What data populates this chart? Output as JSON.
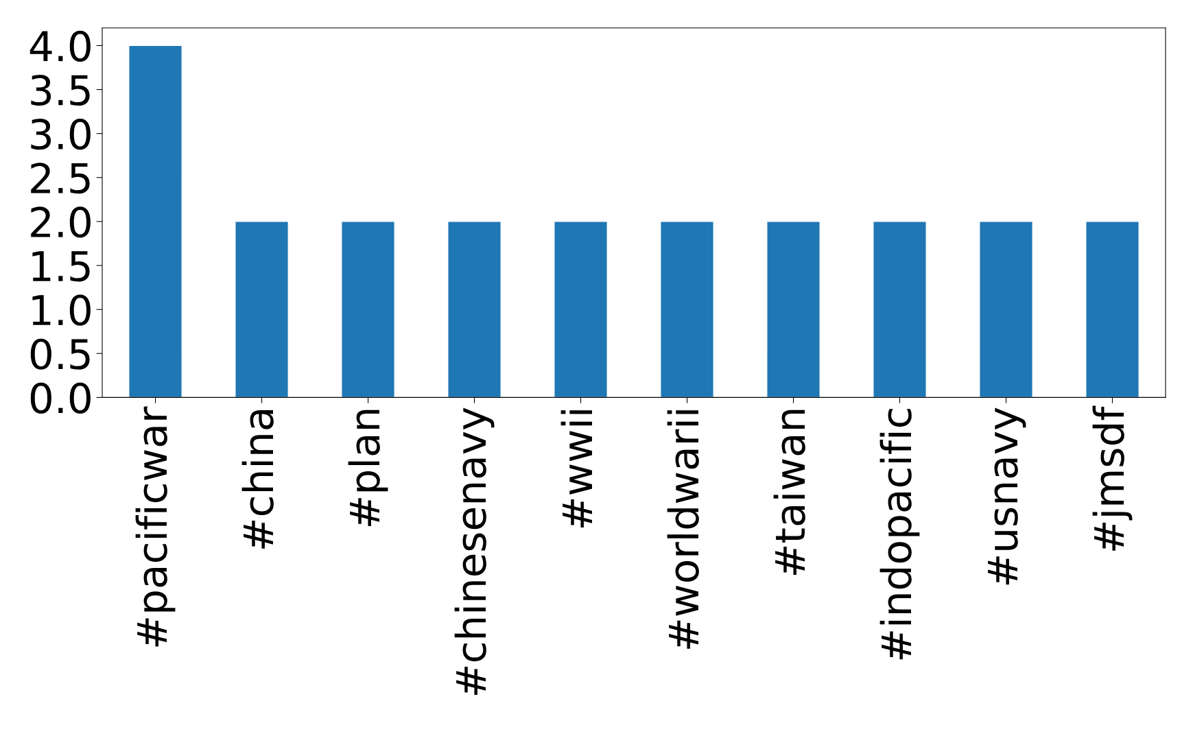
{
  "chart_data": {
    "type": "bar",
    "categories": [
      "#pacificwar",
      "#china",
      "#plan",
      "#chinesenavy",
      "#wwii",
      "#worldwarii",
      "#taiwan",
      "#indopacific",
      "#usnavy",
      "#jmsdf"
    ],
    "values": [
      4,
      2,
      2,
      2,
      2,
      2,
      2,
      2,
      2,
      2
    ],
    "color": "#1f77b4",
    "ylim": [
      0,
      4.2
    ],
    "yticks": [
      {
        "value": 0,
        "label": "0.0"
      },
      {
        "value": 0.5,
        "label": "0.5"
      },
      {
        "value": 1,
        "label": "1.0"
      },
      {
        "value": 1.5,
        "label": "1.5"
      },
      {
        "value": 2,
        "label": "2.0"
      },
      {
        "value": 2.5,
        "label": "2.5"
      },
      {
        "value": 3,
        "label": "3.0"
      },
      {
        "value": 3.5,
        "label": "3.5"
      },
      {
        "value": 4,
        "label": "4.0"
      }
    ],
    "grid": false,
    "legend": false
  }
}
